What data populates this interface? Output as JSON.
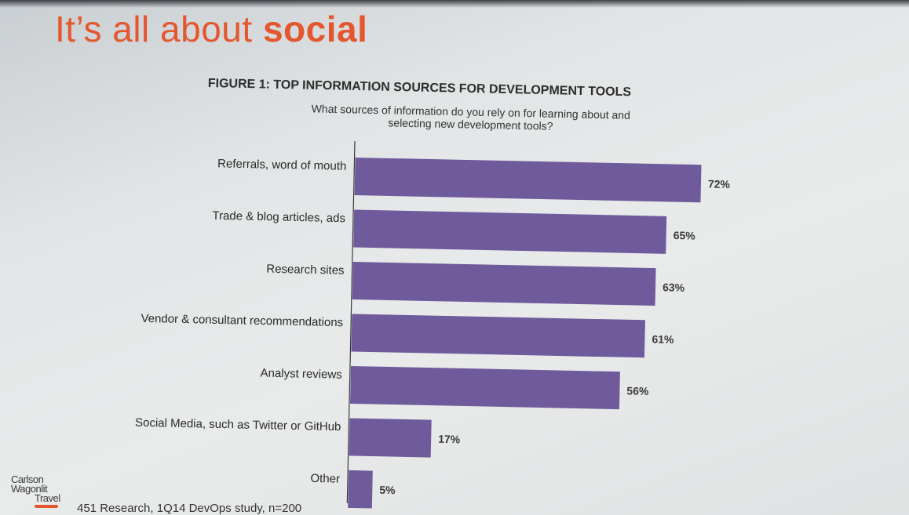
{
  "slide": {
    "title_regular": "It’s all about ",
    "title_bold": "social",
    "source": "451 Research, 1Q14 DevOps study, n=200"
  },
  "logo": {
    "line1": "Carlson",
    "line2": "Wagonlit",
    "line3": "Travel"
  },
  "colors": {
    "title": "#e4562e",
    "bar": "#6f5a9c"
  },
  "chart_data": {
    "type": "bar",
    "orientation": "horizontal",
    "title": "FIGURE 1: TOP INFORMATION SOURCES FOR DEVELOPMENT TOOLS",
    "subtitle": "What sources of information do you rely on for learning about and selecting new development tools?",
    "categories": [
      "Referrals, word of mouth",
      "Trade & blog articles, ads",
      "Research sites",
      "Vendor & consultant recommendations",
      "Analyst reviews",
      "Social Media, such as Twitter or GitHub",
      "Other"
    ],
    "values": [
      72,
      65,
      63,
      61,
      56,
      17,
      5
    ],
    "labels": [
      "72%",
      "65%",
      "63%",
      "61%",
      "56%",
      "17%",
      "5%"
    ],
    "unit": "%",
    "xlim": [
      0,
      80
    ],
    "grid": false,
    "legend": "none"
  }
}
